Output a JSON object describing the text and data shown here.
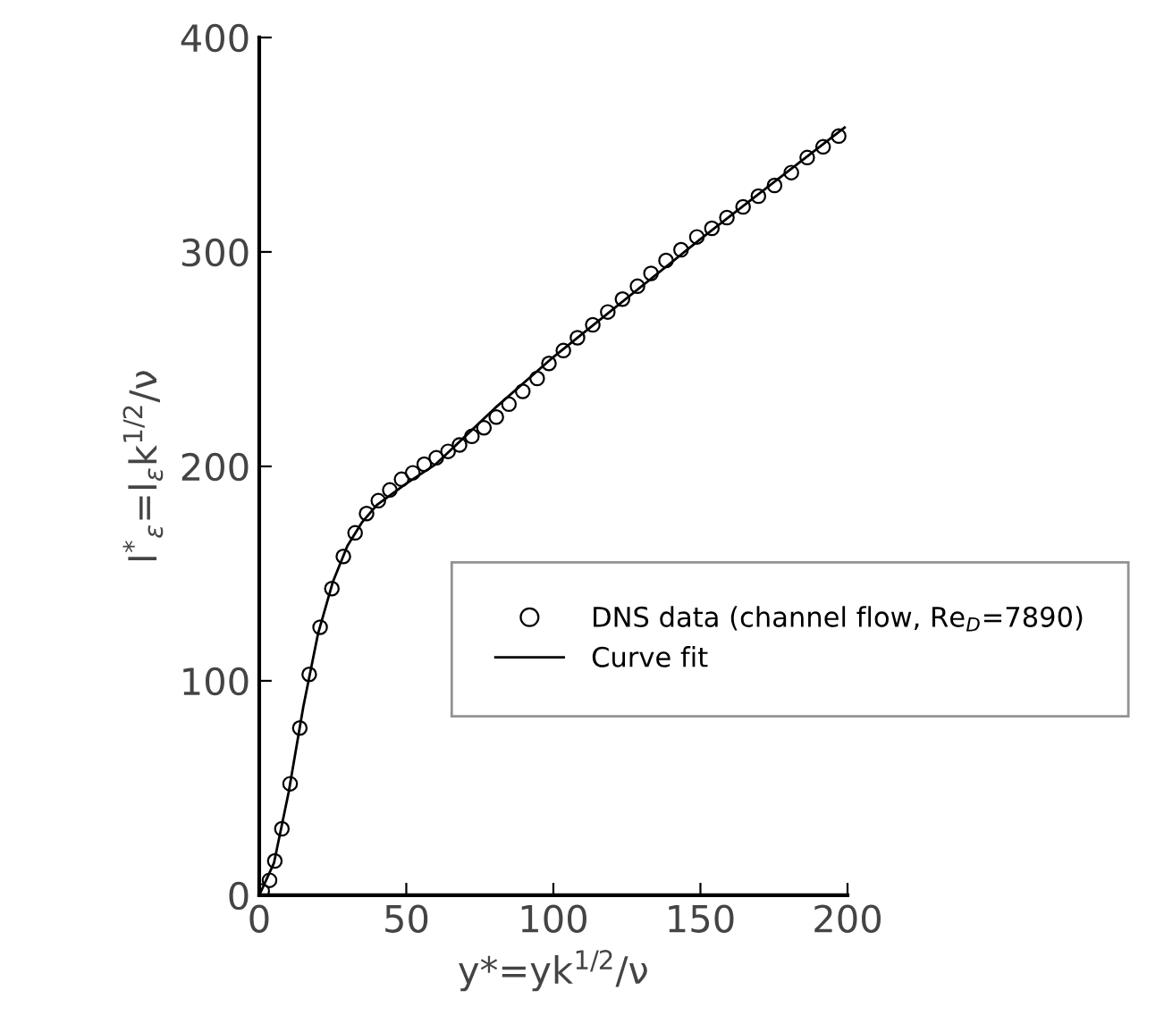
{
  "chart_data": {
    "type": "scatter",
    "xlabel": "y*=yk$^{1/2}$/ν",
    "ylabel": "l$^{*}$$_{ε}$=l$_{ε}$k$^{1/2}$/ν",
    "xlim": [
      0,
      200
    ],
    "ylim": [
      0,
      400
    ],
    "xticks": [
      0,
      50,
      100,
      150,
      200
    ],
    "yticks": [
      0,
      100,
      200,
      300,
      400
    ],
    "grid": false,
    "legend": "right",
    "series": [
      {
        "name": "DNS data (channel flow, Re$_{D}$=7890)",
        "marker": "circle",
        "color": "#000000",
        "x": [
          1.0,
          3.5,
          5.3,
          7.7,
          10.5,
          13.8,
          17.0,
          20.7,
          24.7,
          28.6,
          32.6,
          36.5,
          40.5,
          44.4,
          48.4,
          52.2,
          56.1,
          60.2,
          64.2,
          68.1,
          72.3,
          76.4,
          80.6,
          84.9,
          89.6,
          94.5,
          98.5,
          103.4,
          108.2,
          113.4,
          118.5,
          123.5,
          128.6,
          133.2,
          138.3,
          143.4,
          148.8,
          153.9,
          159.0,
          164.5,
          169.7,
          175.2,
          180.9,
          186.3,
          191.7,
          197.0
        ],
        "values": [
          2,
          7,
          16,
          31,
          52,
          78,
          103,
          125,
          143,
          158,
          169,
          178,
          184,
          189,
          194,
          197,
          201,
          204,
          207,
          210,
          214,
          218,
          223,
          229,
          235,
          241,
          248,
          254,
          260,
          266,
          272,
          278,
          284,
          290,
          296,
          301,
          307,
          311,
          316,
          321,
          326,
          331,
          337,
          344,
          349,
          354
        ]
      },
      {
        "name": "Curve fit",
        "type": "line",
        "marker": "none",
        "line_style": "solid",
        "color": "#000000",
        "x": [
          0,
          5,
          10,
          15,
          20,
          25,
          30,
          35,
          40,
          50,
          60,
          80,
          100,
          150,
          199
        ],
        "values": [
          0,
          15,
          48,
          88,
          122,
          146,
          163,
          174,
          182,
          192,
          201,
          227,
          251,
          306,
          358
        ]
      }
    ]
  }
}
